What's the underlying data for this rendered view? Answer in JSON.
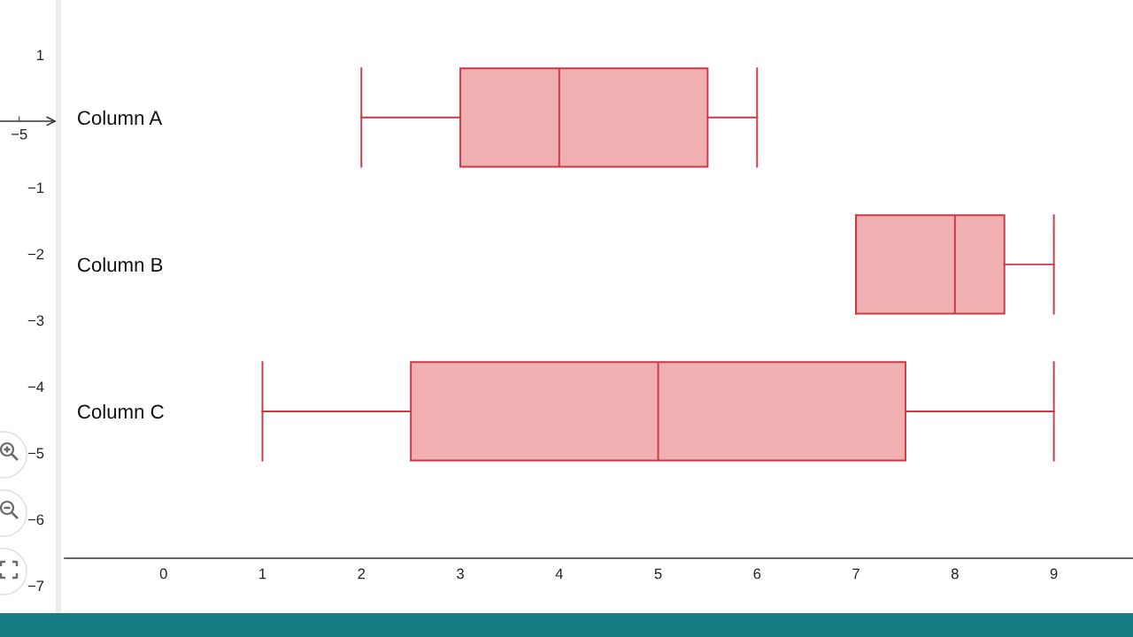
{
  "chart_data": [
    {
      "type": "scatter",
      "categories": [
        "−5"
      ],
      "values": [
        null
      ],
      "ylim": [
        -7,
        1
      ],
      "yticks": [
        {
          "value": 1,
          "label": "1"
        },
        {
          "value": -1,
          "label": "−1"
        },
        {
          "value": -2,
          "label": "−2"
        },
        {
          "value": -3,
          "label": "−3"
        },
        {
          "value": -4,
          "label": "−4"
        },
        {
          "value": -5,
          "label": "−5"
        },
        {
          "value": -6,
          "label": "−6"
        },
        {
          "value": -7,
          "label": "−7"
        }
      ]
    },
    {
      "type": "box",
      "orientation": "horizontal",
      "categories": [
        "Column A",
        "Column B",
        "Column C"
      ],
      "color": "#f0b0b2",
      "boxes": [
        {
          "low": 2,
          "q1": 3,
          "median": 4,
          "q3": 5.5,
          "high": 6
        },
        {
          "low": 7,
          "q1": 7,
          "median": 8,
          "q3": 8.5,
          "high": 9
        },
        {
          "low": 1,
          "q1": 2.5,
          "median": 5,
          "q3": 7.5,
          "high": 9
        }
      ],
      "xlim": [
        -1.0,
        9.8
      ],
      "xticks": [
        0,
        1,
        2,
        3,
        4,
        5,
        6,
        7,
        8,
        9
      ]
    }
  ]
}
